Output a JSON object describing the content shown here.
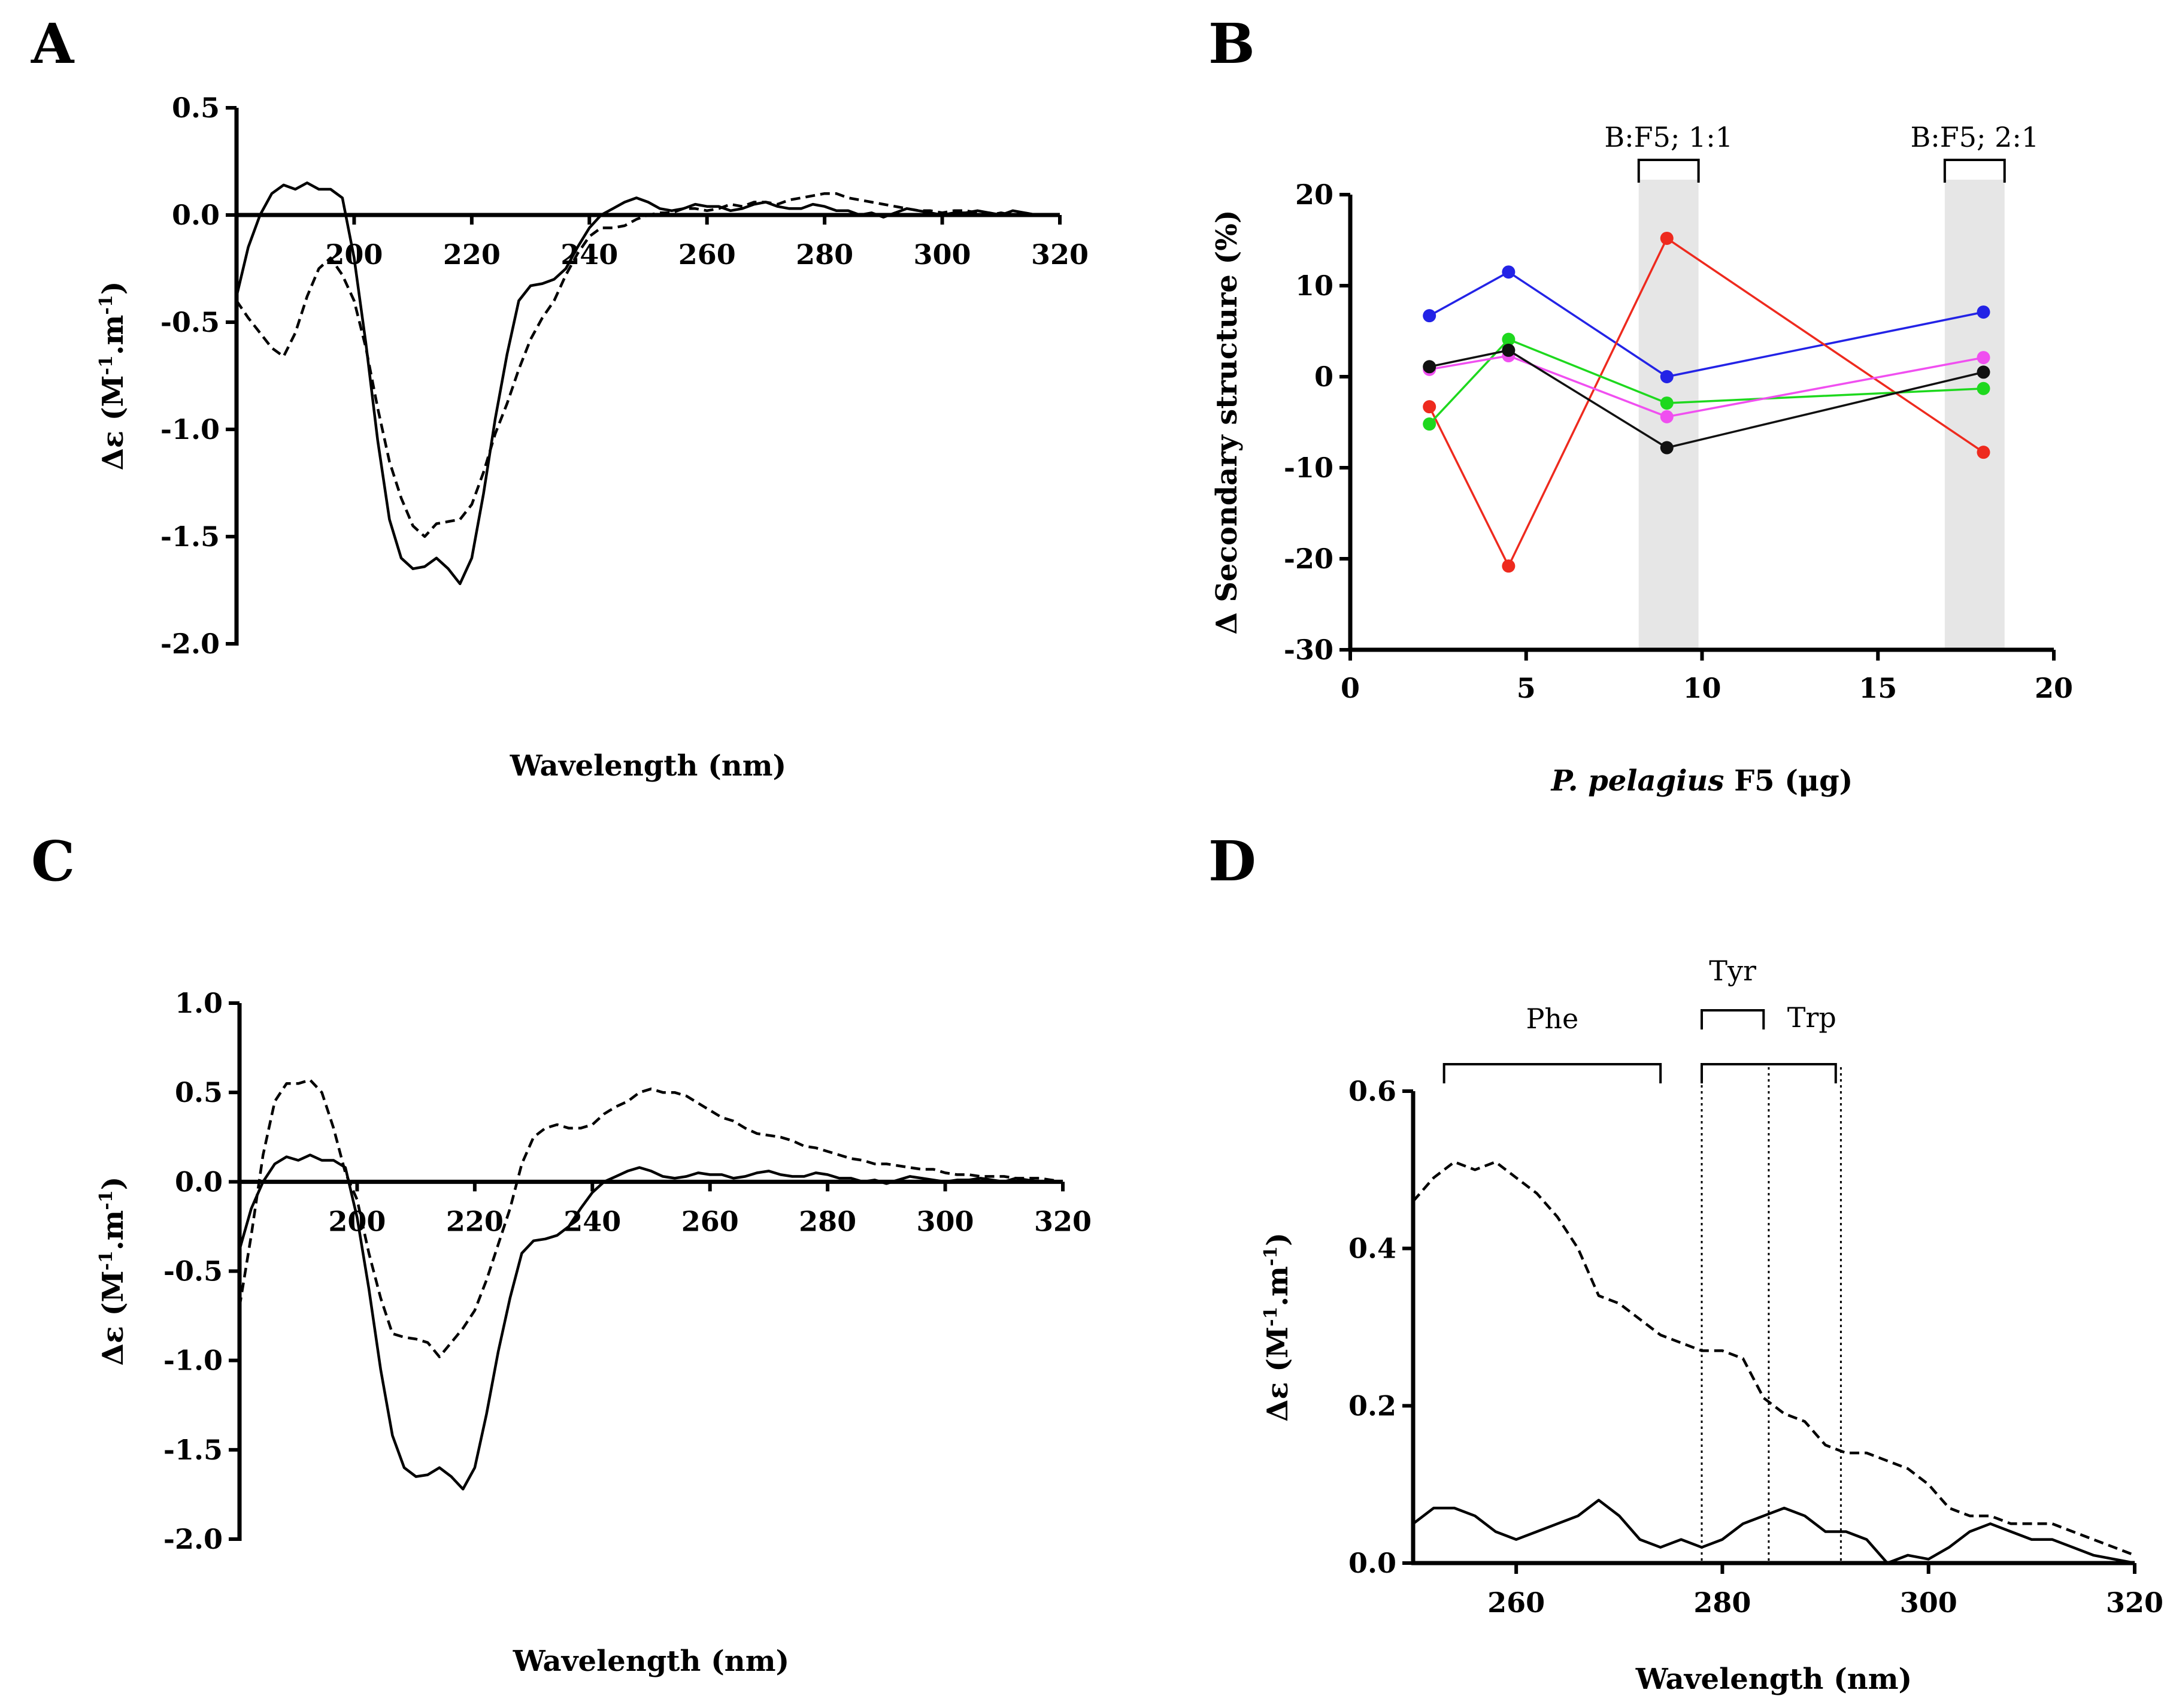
{
  "panels": {
    "A": "A",
    "B": "B",
    "C": "C",
    "D": "D"
  },
  "chart_data": [
    {
      "id": "A",
      "type": "line",
      "xlabel": "Wavelength (nm)",
      "ylabel_main": "Δε (M",
      "ylabel_sup": "-1",
      "ylabel_mid": ".m",
      "ylabel_end": ")",
      "xlim": [
        180,
        320
      ],
      "ylim": [
        -2.0,
        0.5
      ],
      "xticks": [
        200,
        220,
        240,
        260,
        280,
        300,
        320
      ],
      "yticks": [
        0.5,
        0.0,
        -0.5,
        -1.0,
        -1.5,
        -2.0
      ],
      "ytick_labels": [
        "0.5",
        "0.0",
        "-0.5",
        "-1.0",
        "-1.5",
        "-2.0"
      ],
      "series": [
        {
          "name": "solid",
          "style": "solid",
          "x": [
            180,
            182,
            184,
            186,
            188,
            190,
            192,
            194,
            196,
            198,
            200,
            202,
            204,
            206,
            208,
            210,
            212,
            214,
            216,
            218,
            220,
            222,
            224,
            226,
            228,
            230,
            232,
            234,
            236,
            238,
            240,
            242,
            244,
            246,
            248,
            250,
            252,
            254,
            256,
            258,
            260,
            262,
            264,
            266,
            268,
            270,
            272,
            274,
            276,
            278,
            280,
            282,
            284,
            286,
            288,
            290,
            292,
            294,
            296,
            298,
            300,
            302,
            304,
            306,
            308,
            310,
            312,
            314,
            316
          ],
          "y": [
            -0.38,
            -0.15,
            0.0,
            0.1,
            0.14,
            0.12,
            0.15,
            0.12,
            0.12,
            0.08,
            -0.2,
            -0.6,
            -1.05,
            -1.42,
            -1.6,
            -1.65,
            -1.64,
            -1.6,
            -1.65,
            -1.72,
            -1.6,
            -1.3,
            -0.95,
            -0.65,
            -0.4,
            -0.33,
            -0.32,
            -0.3,
            -0.25,
            -0.15,
            -0.06,
            0.0,
            0.03,
            0.06,
            0.08,
            0.06,
            0.03,
            0.02,
            0.03,
            0.05,
            0.04,
            0.04,
            0.02,
            0.03,
            0.05,
            0.06,
            0.04,
            0.03,
            0.03,
            0.05,
            0.04,
            0.02,
            0.02,
            0.0,
            0.01,
            -0.01,
            0.01,
            0.03,
            0.02,
            0.01,
            0.0,
            0.01,
            0.01,
            0.02,
            0.01,
            0.0,
            0.02,
            0.01,
            0.0
          ]
        },
        {
          "name": "dashed",
          "style": "dashed",
          "x": [
            180,
            182,
            184,
            186,
            188,
            190,
            192,
            194,
            196,
            198,
            200,
            202,
            204,
            206,
            208,
            210,
            212,
            214,
            216,
            218,
            220,
            222,
            224,
            226,
            228,
            230,
            232,
            234,
            236,
            238,
            240,
            242,
            244,
            246,
            248,
            250,
            252,
            254,
            256,
            258,
            260,
            262,
            264,
            266,
            268,
            270,
            272,
            274,
            276,
            278,
            280,
            282,
            284,
            286,
            288,
            290,
            292,
            294,
            296,
            298,
            300,
            302,
            304,
            306,
            308,
            310,
            312,
            314,
            316
          ],
          "y": [
            -0.4,
            -0.48,
            -0.55,
            -0.62,
            -0.66,
            -0.55,
            -0.38,
            -0.25,
            -0.2,
            -0.28,
            -0.4,
            -0.62,
            -0.9,
            -1.15,
            -1.32,
            -1.45,
            -1.5,
            -1.44,
            -1.43,
            -1.42,
            -1.35,
            -1.2,
            -1.02,
            -0.88,
            -0.72,
            -0.58,
            -0.48,
            -0.4,
            -0.28,
            -0.18,
            -0.1,
            -0.06,
            -0.06,
            -0.05,
            -0.02,
            0.0,
            0.01,
            0.01,
            0.03,
            0.03,
            0.02,
            0.03,
            0.05,
            0.04,
            0.06,
            0.06,
            0.05,
            0.07,
            0.08,
            0.09,
            0.1,
            0.1,
            0.08,
            0.07,
            0.06,
            0.05,
            0.04,
            0.03,
            0.02,
            0.02,
            0.01,
            0.02,
            0.02,
            0.01,
            0.0,
            0.01,
            0.0,
            0.01,
            0.0
          ]
        }
      ]
    },
    {
      "id": "B",
      "type": "line",
      "xlabel_italic": "P. pelagius",
      "xlabel_rest": " F5 (μg)",
      "ylabel": "Δ Secondary structure (%)",
      "xlim": [
        0,
        20
      ],
      "ylim": [
        -30,
        20
      ],
      "xticks": [
        0,
        5,
        10,
        15,
        20
      ],
      "yticks": [
        20,
        10,
        0,
        -10,
        -20,
        -30
      ],
      "ytick_labels": [
        "20",
        "10",
        "0",
        "-10",
        "-20",
        "-30"
      ],
      "shaded_regions": [
        {
          "range": [
            8.2,
            9.9
          ],
          "label": "B:F5; 1:1"
        },
        {
          "range": [
            16.9,
            18.6
          ],
          "label": "B:F5; 2:1"
        }
      ],
      "series": [
        {
          "name": "blue",
          "color": "#2323e6",
          "x": [
            2.25,
            4.5,
            9,
            18
          ],
          "y": [
            6.7,
            11.5,
            0.0,
            7.1
          ]
        },
        {
          "name": "red",
          "color": "#ee2a1e",
          "x": [
            2.25,
            4.5,
            9,
            18
          ],
          "y": [
            -3.3,
            -20.8,
            15.2,
            -8.3
          ]
        },
        {
          "name": "green",
          "color": "#1ed81e",
          "x": [
            2.25,
            4.5,
            9,
            18
          ],
          "y": [
            -5.2,
            4.1,
            -2.9,
            -1.3
          ]
        },
        {
          "name": "magenta",
          "color": "#f04ff0",
          "x": [
            2.25,
            4.5,
            9,
            18
          ],
          "y": [
            0.8,
            2.3,
            -4.4,
            2.1
          ]
        },
        {
          "name": "black",
          "color": "#111111",
          "x": [
            2.25,
            4.5,
            9,
            18
          ],
          "y": [
            1.1,
            2.9,
            -7.8,
            0.5
          ]
        }
      ]
    },
    {
      "id": "C",
      "type": "line",
      "xlabel": "Wavelength (nm)",
      "ylabel_main": "Δε (M",
      "ylabel_sup": "-1",
      "ylabel_mid": ".m",
      "ylabel_end": ")",
      "xlim": [
        180,
        320
      ],
      "ylim": [
        -2.0,
        1.0
      ],
      "xticks": [
        200,
        220,
        240,
        260,
        280,
        300,
        320
      ],
      "yticks": [
        1.0,
        0.5,
        0.0,
        -0.5,
        -1.0,
        -1.5,
        -2.0
      ],
      "ytick_labels": [
        "1.0",
        "0.5",
        "0.0",
        "-0.5",
        "-1.0",
        "-1.5",
        "-2.0"
      ],
      "series": [
        {
          "name": "solid",
          "style": "solid",
          "x": [
            180,
            182,
            184,
            186,
            188,
            190,
            192,
            194,
            196,
            198,
            200,
            202,
            204,
            206,
            208,
            210,
            212,
            214,
            216,
            218,
            220,
            222,
            224,
            226,
            228,
            230,
            232,
            234,
            236,
            238,
            240,
            242,
            244,
            246,
            248,
            250,
            252,
            254,
            256,
            258,
            260,
            262,
            264,
            266,
            268,
            270,
            272,
            274,
            276,
            278,
            280,
            282,
            284,
            286,
            288,
            290,
            292,
            294,
            296,
            298,
            300,
            302,
            304,
            306,
            308,
            310,
            312,
            314,
            316
          ],
          "y": [
            -0.38,
            -0.15,
            0.0,
            0.1,
            0.14,
            0.12,
            0.15,
            0.12,
            0.12,
            0.08,
            -0.2,
            -0.6,
            -1.05,
            -1.42,
            -1.6,
            -1.65,
            -1.64,
            -1.6,
            -1.65,
            -1.72,
            -1.6,
            -1.3,
            -0.95,
            -0.65,
            -0.4,
            -0.33,
            -0.32,
            -0.3,
            -0.25,
            -0.15,
            -0.06,
            0.0,
            0.03,
            0.06,
            0.08,
            0.06,
            0.03,
            0.02,
            0.03,
            0.05,
            0.04,
            0.04,
            0.02,
            0.03,
            0.05,
            0.06,
            0.04,
            0.03,
            0.03,
            0.05,
            0.04,
            0.02,
            0.02,
            0.0,
            0.01,
            -0.01,
            0.01,
            0.03,
            0.02,
            0.01,
            0.0,
            0.01,
            0.01,
            0.02,
            0.01,
            0.0,
            0.02,
            0.01,
            0.0
          ]
        },
        {
          "name": "dashed",
          "style": "dashed",
          "x": [
            180,
            182,
            184,
            186,
            188,
            190,
            192,
            194,
            196,
            198,
            200,
            202,
            204,
            206,
            208,
            210,
            212,
            214,
            216,
            218,
            220,
            222,
            224,
            226,
            228,
            230,
            232,
            234,
            236,
            238,
            240,
            242,
            244,
            246,
            248,
            250,
            252,
            254,
            256,
            258,
            260,
            262,
            264,
            266,
            268,
            270,
            272,
            274,
            276,
            278,
            280,
            282,
            284,
            286,
            288,
            290,
            292,
            294,
            296,
            298,
            300,
            302,
            304,
            306,
            308,
            310,
            312,
            314,
            316,
            318,
            320
          ],
          "y": [
            -0.7,
            -0.3,
            0.15,
            0.45,
            0.55,
            0.55,
            0.57,
            0.5,
            0.3,
            0.05,
            -0.1,
            -0.4,
            -0.65,
            -0.85,
            -0.87,
            -0.88,
            -0.9,
            -0.98,
            -0.9,
            -0.82,
            -0.72,
            -0.55,
            -0.35,
            -0.15,
            0.1,
            0.25,
            0.3,
            0.32,
            0.3,
            0.3,
            0.32,
            0.38,
            0.42,
            0.45,
            0.5,
            0.52,
            0.5,
            0.5,
            0.48,
            0.44,
            0.4,
            0.36,
            0.34,
            0.3,
            0.27,
            0.26,
            0.25,
            0.23,
            0.2,
            0.19,
            0.17,
            0.15,
            0.13,
            0.12,
            0.1,
            0.1,
            0.09,
            0.08,
            0.07,
            0.07,
            0.05,
            0.04,
            0.04,
            0.03,
            0.03,
            0.03,
            0.02,
            0.02,
            0.02,
            0.01,
            0.0
          ]
        }
      ]
    },
    {
      "id": "D",
      "type": "line",
      "xlabel": "Wavelength (nm)",
      "ylabel_main": "Δε (M",
      "ylabel_sup": "-1",
      "ylabel_mid": ".m",
      "ylabel_end": ")",
      "xlim": [
        250,
        320
      ],
      "ylim": [
        0.0,
        0.6
      ],
      "xticks": [
        260,
        280,
        300,
        320
      ],
      "yticks": [
        0.6,
        0.4,
        0.2,
        0.0
      ],
      "ytick_labels": [
        "0.6",
        "0.4",
        "0.2",
        "0.0"
      ],
      "annotations": [
        {
          "label": "Phe",
          "range": [
            253,
            274
          ]
        },
        {
          "label": "Tyr",
          "range": [
            278,
            284
          ]
        },
        {
          "label": "Trp",
          "range": [
            278,
            291
          ]
        }
      ],
      "vlines": [
        278,
        284.5,
        291.5
      ],
      "series": [
        {
          "name": "solid",
          "style": "solid",
          "x": [
            250,
            252,
            254,
            256,
            258,
            260,
            262,
            264,
            266,
            268,
            270,
            272,
            274,
            276,
            278,
            280,
            282,
            284,
            286,
            288,
            290,
            292,
            294,
            296,
            298,
            300,
            302,
            304,
            306,
            308,
            310,
            312,
            314,
            316,
            318,
            320
          ],
          "y": [
            0.05,
            0.07,
            0.07,
            0.06,
            0.04,
            0.03,
            0.04,
            0.05,
            0.06,
            0.08,
            0.06,
            0.03,
            0.02,
            0.03,
            0.02,
            0.03,
            0.05,
            0.06,
            0.07,
            0.06,
            0.04,
            0.04,
            0.03,
            0.0,
            0.01,
            0.005,
            0.02,
            0.04,
            0.05,
            0.04,
            0.03,
            0.03,
            0.02,
            0.01,
            0.005,
            0.0
          ]
        },
        {
          "name": "dashed",
          "style": "dashed",
          "x": [
            250,
            252,
            254,
            256,
            258,
            260,
            262,
            264,
            266,
            268,
            270,
            272,
            274,
            276,
            278,
            280,
            282,
            284,
            286,
            288,
            290,
            292,
            294,
            296,
            298,
            300,
            302,
            304,
            306,
            308,
            310,
            312,
            314,
            316,
            318,
            320
          ],
          "y": [
            0.46,
            0.49,
            0.51,
            0.5,
            0.51,
            0.49,
            0.47,
            0.44,
            0.4,
            0.34,
            0.33,
            0.31,
            0.29,
            0.28,
            0.27,
            0.27,
            0.26,
            0.21,
            0.19,
            0.18,
            0.15,
            0.14,
            0.14,
            0.13,
            0.12,
            0.1,
            0.07,
            0.06,
            0.06,
            0.05,
            0.05,
            0.05,
            0.04,
            0.03,
            0.02,
            0.01
          ]
        }
      ]
    }
  ]
}
